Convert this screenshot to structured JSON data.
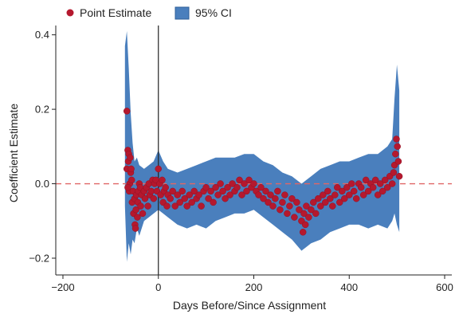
{
  "chart_data": {
    "type": "scatter",
    "xlabel": "Days Before/Since Assignment",
    "ylabel": "Coefficient Estimate",
    "xlim": [
      -215,
      615
    ],
    "ylim": [
      -0.245,
      0.425
    ],
    "xticks": [
      -200,
      0,
      200,
      400,
      600
    ],
    "xtick_labels": [
      "−200",
      "0",
      "200",
      "400",
      "600"
    ],
    "yticks": [
      -0.2,
      0.0,
      0.2,
      0.4
    ],
    "ytick_labels": [
      "−0.2",
      "0.0",
      "0.2",
      "0.4"
    ],
    "reference_lines": [
      {
        "orientation": "horizontal",
        "value": 0,
        "style": "dashed",
        "color": "#e06666"
      },
      {
        "orientation": "vertical",
        "value": 0,
        "style": "solid",
        "color": "#222222"
      }
    ],
    "legend": {
      "placement": "top-left",
      "entries": [
        {
          "label": "Point Estimate",
          "marker": "circle",
          "color": "#b5182e"
        },
        {
          "label": "95% CI",
          "marker": "square",
          "color": "#4a7fbd"
        }
      ]
    },
    "series": [
      {
        "name": "95% CI",
        "kind": "band",
        "color": "#4a7fbd",
        "x": [
          -70,
          -66,
          -62,
          -58,
          -54,
          -50,
          -45,
          -40,
          -30,
          -20,
          -10,
          0,
          10,
          20,
          40,
          60,
          80,
          100,
          120,
          140,
          160,
          180,
          200,
          220,
          240,
          260,
          280,
          300,
          320,
          340,
          360,
          380,
          400,
          420,
          440,
          460,
          480,
          490,
          495,
          500,
          505
        ],
        "lower": [
          -0.06,
          -0.21,
          -0.16,
          -0.19,
          -0.15,
          -0.16,
          -0.12,
          -0.14,
          -0.1,
          -0.09,
          -0.08,
          -0.07,
          -0.08,
          -0.09,
          -0.11,
          -0.12,
          -0.11,
          -0.12,
          -0.1,
          -0.09,
          -0.08,
          -0.08,
          -0.07,
          -0.09,
          -0.11,
          -0.13,
          -0.15,
          -0.18,
          -0.16,
          -0.15,
          -0.13,
          -0.12,
          -0.11,
          -0.11,
          -0.12,
          -0.11,
          -0.12,
          -0.1,
          -0.08,
          -0.11,
          -0.13
        ],
        "upper": [
          0.37,
          0.41,
          0.31,
          0.19,
          0.11,
          0.06,
          0.07,
          0.05,
          0.04,
          0.05,
          0.06,
          0.09,
          0.06,
          0.04,
          0.03,
          0.04,
          0.05,
          0.06,
          0.07,
          0.07,
          0.07,
          0.08,
          0.08,
          0.06,
          0.05,
          0.03,
          0.02,
          0.0,
          0.02,
          0.04,
          0.05,
          0.06,
          0.06,
          0.07,
          0.08,
          0.08,
          0.1,
          0.12,
          0.23,
          0.32,
          0.25
        ]
      },
      {
        "name": "Point Estimate",
        "kind": "points",
        "color": "#b5182e",
        "x": [
          -66,
          -64,
          -62,
          -66,
          -63,
          -59,
          -58,
          -60,
          -61,
          -57,
          -64,
          -56,
          -55,
          -53,
          -52,
          -50,
          -49,
          -48,
          -47,
          -46,
          -44,
          -43,
          -42,
          -40,
          -38,
          -37,
          -35,
          -33,
          -30,
          -28,
          -25,
          -22,
          -20,
          -18,
          -15,
          -12,
          -10,
          -8,
          -5,
          -3,
          0,
          3,
          5,
          8,
          10,
          12,
          15,
          18,
          20,
          25,
          30,
          35,
          40,
          45,
          50,
          55,
          60,
          65,
          70,
          75,
          80,
          85,
          90,
          95,
          100,
          105,
          110,
          115,
          120,
          125,
          130,
          135,
          140,
          145,
          150,
          155,
          160,
          165,
          170,
          175,
          180,
          185,
          190,
          195,
          200,
          205,
          210,
          215,
          220,
          225,
          230,
          235,
          240,
          245,
          250,
          255,
          260,
          265,
          270,
          275,
          280,
          285,
          290,
          295,
          300,
          303,
          305,
          308,
          310,
          315,
          320,
          325,
          330,
          335,
          340,
          345,
          350,
          355,
          360,
          365,
          370,
          375,
          380,
          385,
          390,
          395,
          400,
          405,
          410,
          415,
          420,
          425,
          430,
          435,
          440,
          445,
          450,
          455,
          460,
          465,
          470,
          475,
          480,
          485,
          490,
          493,
          495,
          497,
          499,
          501,
          503,
          505
        ],
        "y": [
          0.195,
          0.09,
          0.08,
          0.04,
          0.06,
          0.07,
          0.03,
          0.0,
          -0.02,
          0.04,
          -0.01,
          0.01,
          -0.05,
          -0.02,
          -0.08,
          -0.04,
          -0.11,
          -0.12,
          -0.07,
          -0.03,
          -0.09,
          -0.05,
          -0.02,
          0.0,
          -0.01,
          -0.06,
          -0.03,
          -0.08,
          -0.02,
          -0.04,
          -0.01,
          -0.06,
          0.0,
          -0.03,
          -0.02,
          0.01,
          -0.04,
          0.0,
          0.01,
          -0.02,
          0.04,
          0.0,
          -0.03,
          0.01,
          -0.05,
          -0.02,
          -0.01,
          -0.06,
          -0.03,
          -0.04,
          -0.02,
          -0.06,
          -0.03,
          -0.05,
          -0.02,
          -0.04,
          -0.06,
          -0.03,
          -0.05,
          -0.02,
          -0.04,
          -0.03,
          -0.06,
          -0.02,
          -0.01,
          -0.04,
          -0.02,
          -0.05,
          -0.01,
          -0.03,
          0.0,
          -0.02,
          -0.04,
          -0.01,
          -0.03,
          0.0,
          -0.02,
          -0.01,
          0.01,
          -0.03,
          0.0,
          -0.02,
          0.01,
          -0.01,
          0.0,
          -0.02,
          -0.03,
          -0.01,
          -0.04,
          -0.02,
          -0.05,
          -0.03,
          -0.06,
          -0.04,
          -0.02,
          -0.07,
          -0.05,
          -0.03,
          -0.08,
          -0.06,
          -0.04,
          -0.09,
          -0.05,
          -0.07,
          -0.1,
          -0.13,
          -0.08,
          -0.11,
          -0.06,
          -0.09,
          -0.07,
          -0.05,
          -0.08,
          -0.04,
          -0.06,
          -0.03,
          -0.05,
          -0.02,
          -0.04,
          -0.06,
          -0.03,
          -0.01,
          -0.05,
          -0.02,
          -0.04,
          -0.01,
          -0.03,
          0.0,
          -0.02,
          -0.04,
          0.0,
          -0.01,
          -0.03,
          0.01,
          -0.02,
          0.0,
          -0.01,
          0.01,
          -0.03,
          0.0,
          -0.02,
          0.01,
          -0.01,
          0.02,
          0.0,
          0.03,
          0.05,
          0.08,
          0.12,
          0.1,
          0.06,
          0.02
        ]
      }
    ]
  }
}
